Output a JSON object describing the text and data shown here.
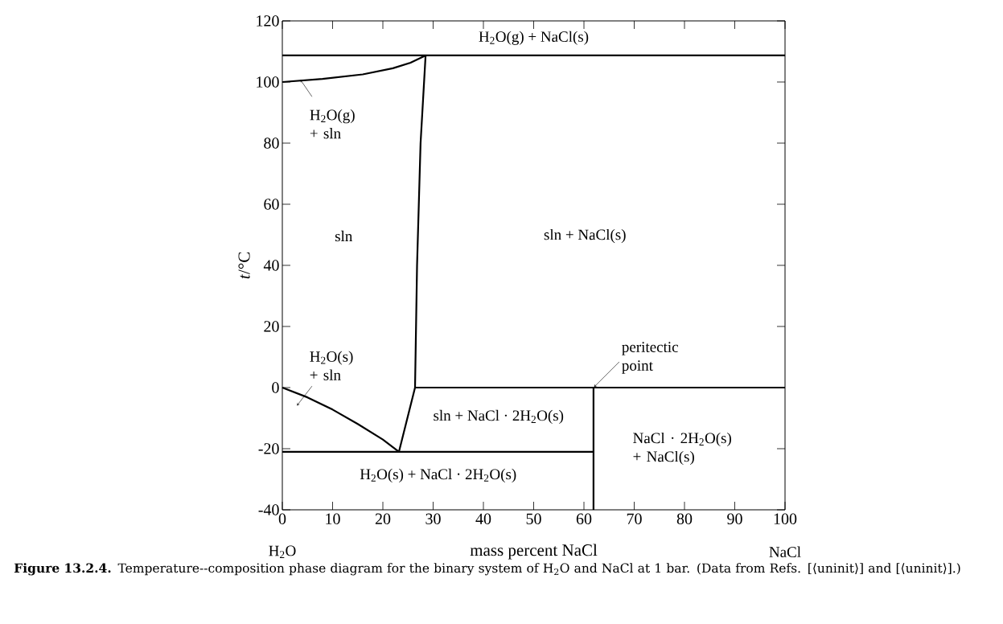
{
  "chart_data": {
    "type": "line",
    "xlabel": "mass percent NaCl",
    "ylabel": "*t*/°C",
    "xlim": [
      0,
      100
    ],
    "ylim": [
      -40,
      120
    ],
    "xticks": [
      0,
      10,
      20,
      30,
      40,
      50,
      60,
      70,
      80,
      90,
      100
    ],
    "yticks": [
      -40,
      -20,
      0,
      20,
      40,
      60,
      80,
      100,
      120
    ],
    "series": [
      {
        "color": "#000000",
        "x": [
          0,
          100
        ],
        "values": [
          108.7,
          108.7
        ]
      },
      {
        "color": "#000000",
        "x": [
          0,
          8,
          16,
          22,
          25.5,
          28.5
        ],
        "values": [
          100,
          101,
          102.5,
          104.5,
          106.3,
          108.7
        ]
      },
      {
        "color": "#000000",
        "x": [
          23.2,
          26.4,
          26.8,
          27.5,
          28.5
        ],
        "values": [
          -21,
          0,
          40,
          80,
          108.7
        ]
      },
      {
        "color": "#000000",
        "x": [
          26.4,
          100
        ],
        "values": [
          0,
          0
        ]
      },
      {
        "color": "#000000",
        "x": [
          61.9,
          61.9
        ],
        "values": [
          -40,
          0
        ]
      },
      {
        "color": "#000000",
        "x": [
          0,
          61.9
        ],
        "values": [
          -21,
          -21
        ]
      },
      {
        "color": "#000000",
        "x": [
          0,
          5,
          10,
          15,
          20,
          23.2
        ],
        "values": [
          0,
          -3.2,
          -7.2,
          -11.9,
          -17,
          -21
        ]
      }
    ],
    "annotations": [
      "H$_{2}$O(g) + NaCl(s)",
      {
        "text": "H$_{2}$O(g) + sln",
        "x": 3.5,
        "y": 101
      },
      "sln",
      "sln + NaCl(s)",
      "H$_{2}$O(s) + sln",
      {
        "text": "peritectic point",
        "x": 61.9,
        "y": 0
      },
      "sln + NaCl · 2H$_{2}$O(s)",
      "NaCl · 2H$_{2}$O(s) + NaCl(s)",
      "H$_{2}$O(s) + NaCl · 2H$_{2}$O(s)",
      "H$_{2}$O",
      "NaCl",
      "**Figure 13.2.4.** Temperature--composition phase diagram for the binary system of H$_{2}$O and NaCl at 1 bar. (Data from Refs. [⟨uninit⟩] and [⟨uninit⟩].)"
    ]
  }
}
